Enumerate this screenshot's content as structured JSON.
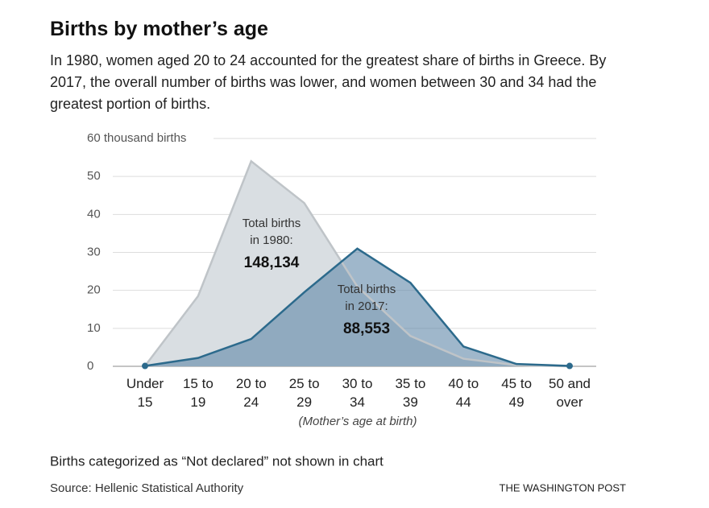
{
  "chart_data": {
    "type": "area",
    "title": "Births by mother’s age",
    "subtitle": "In 1980, women aged 20 to 24 accounted for the greatest share of births in Greece. By 2017, the overall number of births was lower, and women between 30 and 34 had the greatest portion of births.",
    "categories": [
      "Under 15",
      "15 to 19",
      "20 to 24",
      "25 to 29",
      "30 to 34",
      "35 to 39",
      "40 to 44",
      "45 to 49",
      "50 and over"
    ],
    "series": [
      {
        "name": "1980",
        "color": "#bfc4c8",
        "fill": "#d9dee2",
        "values": [
          0.1,
          18.5,
          54,
          43,
          21,
          8,
          2,
          0.3,
          0
        ]
      },
      {
        "name": "2017",
        "color": "#2c6a8c",
        "fill": "#5f87a8",
        "values": [
          0.1,
          2.2,
          7.2,
          19.5,
          31,
          22,
          5.2,
          0.6,
          0.1
        ]
      }
    ],
    "ylim": [
      0,
      60
    ],
    "yticks": [
      0,
      10,
      20,
      30,
      40,
      50,
      {
        "value": 60,
        "label": "60 thousand births"
      }
    ],
    "grid": true,
    "xlabel": "(Mother’s age at birth)",
    "annotations": [
      {
        "lines": [
          "Total births",
          "in 1980:"
        ],
        "total": "148,134"
      },
      {
        "lines": [
          "Total births",
          "in 2017:"
        ],
        "total": "88,553"
      }
    ],
    "note": "Births categorized as “Not declared” not shown in chart",
    "source": "Source: Hellenic Statistical Authority",
    "credit": "THE WASHINGTON POST"
  }
}
